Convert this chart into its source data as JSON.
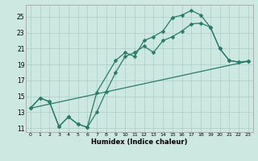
{
  "xlabel": "Humidex (Indice chaleur)",
  "background_color": "#cce8e0",
  "grid_color": "#aaccc4",
  "line_color": "#2a7a6a",
  "xlim": [
    -0.5,
    23.5
  ],
  "ylim": [
    10.5,
    26.5
  ],
  "xticks": [
    0,
    1,
    2,
    3,
    4,
    5,
    6,
    7,
    8,
    9,
    10,
    11,
    12,
    13,
    14,
    15,
    16,
    17,
    18,
    19,
    20,
    21,
    22,
    23
  ],
  "yticks": [
    11,
    13,
    15,
    17,
    19,
    21,
    23,
    25
  ],
  "line1_x": [
    0,
    1,
    2,
    3,
    4,
    5,
    6,
    7,
    9,
    10,
    11,
    12,
    13,
    14,
    15,
    16,
    17,
    18,
    19,
    20,
    21,
    22,
    23
  ],
  "line1_y": [
    13.5,
    14.8,
    14.3,
    11.2,
    12.4,
    11.5,
    11.1,
    15.5,
    19.5,
    20.5,
    20.0,
    22.0,
    22.5,
    23.2,
    24.9,
    25.2,
    25.8,
    25.2,
    23.7,
    21.0,
    19.5,
    19.3,
    19.4
  ],
  "line2_x": [
    0,
    1,
    2,
    3,
    4,
    5,
    6,
    7,
    8,
    9,
    10,
    11,
    12,
    13,
    14,
    15,
    16,
    17,
    18,
    19,
    20,
    21,
    22,
    23
  ],
  "line2_y": [
    13.5,
    14.8,
    14.3,
    11.2,
    12.4,
    11.5,
    11.1,
    13.0,
    15.6,
    18.0,
    20.0,
    20.5,
    21.3,
    20.5,
    22.0,
    22.5,
    23.2,
    24.1,
    24.2,
    23.7,
    21.0,
    19.5,
    19.3,
    19.4
  ],
  "line3_x": [
    0,
    23
  ],
  "line3_y": [
    13.5,
    19.4
  ]
}
